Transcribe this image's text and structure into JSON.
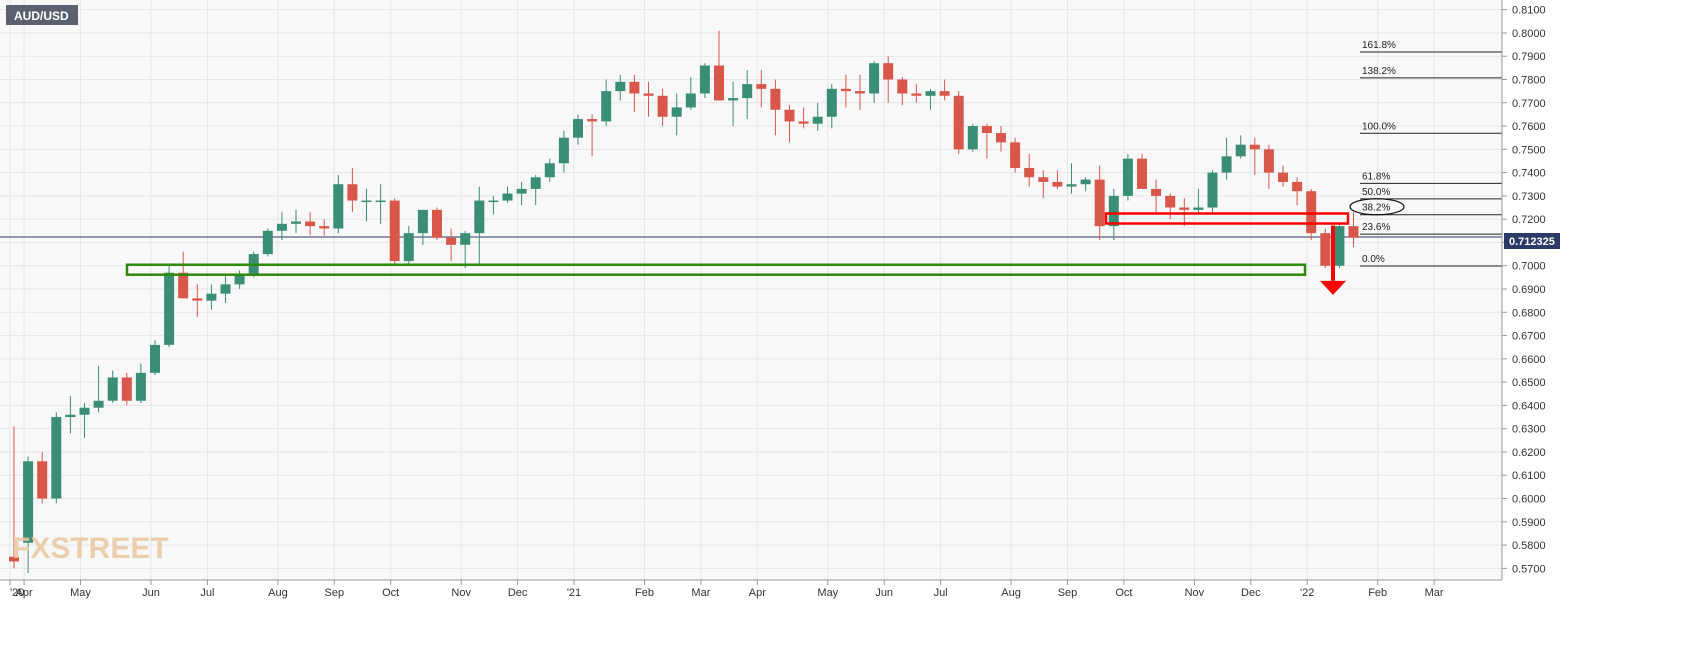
{
  "symbol_badge": "AUD/USD",
  "watermark": "FXSTREET",
  "price_badge": "0.712325",
  "colors": {
    "up": "#3a8e76",
    "down": "#d9574a",
    "grid": "#e6e6e6",
    "bg": "#f8f8f8",
    "support": "#2e8a0c",
    "resistance": "#ff0000",
    "arrow": "#ff0000"
  },
  "chart_data": {
    "type": "candlestick",
    "title": "AUD/USD",
    "timeframe": "weekly",
    "ylim": [
      0.565,
      0.812
    ],
    "y_ticks": [
      "0.8100",
      "0.8000",
      "0.7900",
      "0.7800",
      "0.7700",
      "0.7600",
      "0.7500",
      "0.7400",
      "0.7300",
      "0.7200",
      "0.7100",
      "0.7000",
      "0.6900",
      "0.6800",
      "0.6700",
      "0.6600",
      "0.6500",
      "0.6400",
      "0.6300",
      "0.6200",
      "0.6100",
      "0.6000",
      "0.5900",
      "0.5800",
      "0.5700"
    ],
    "x_labels": [
      {
        "label": "'20",
        "week": 0
      },
      {
        "label": "Apr",
        "week": 1
      },
      {
        "label": "May",
        "week": 5
      },
      {
        "label": "Jun",
        "week": 10
      },
      {
        "label": "Jul",
        "week": 14
      },
      {
        "label": "Aug",
        "week": 19
      },
      {
        "label": "Sep",
        "week": 23
      },
      {
        "label": "Oct",
        "week": 27
      },
      {
        "label": "Nov",
        "week": 32
      },
      {
        "label": "Dec",
        "week": 36
      },
      {
        "label": "'21",
        "week": 40
      },
      {
        "label": "Feb",
        "week": 45
      },
      {
        "label": "Mar",
        "week": 49
      },
      {
        "label": "Apr",
        "week": 53
      },
      {
        "label": "May",
        "week": 58
      },
      {
        "label": "Jun",
        "week": 62
      },
      {
        "label": "Jul",
        "week": 66
      },
      {
        "label": "Aug",
        "week": 71
      },
      {
        "label": "Sep",
        "week": 75
      },
      {
        "label": "Oct",
        "week": 79
      },
      {
        "label": "Nov",
        "week": 84
      },
      {
        "label": "Dec",
        "week": 88
      },
      {
        "label": "'22",
        "week": 92
      },
      {
        "label": "Feb",
        "week": 97
      },
      {
        "label": "Mar",
        "week": 101
      }
    ],
    "candles": [
      [
        0.575,
        0.631,
        0.57,
        0.573
      ],
      [
        0.581,
        0.618,
        0.568,
        0.616
      ],
      [
        0.616,
        0.62,
        0.598,
        0.6
      ],
      [
        0.6,
        0.637,
        0.598,
        0.635
      ],
      [
        0.635,
        0.644,
        0.628,
        0.636
      ],
      [
        0.636,
        0.641,
        0.626,
        0.639
      ],
      [
        0.639,
        0.657,
        0.637,
        0.642
      ],
      [
        0.642,
        0.655,
        0.641,
        0.652
      ],
      [
        0.652,
        0.654,
        0.64,
        0.642
      ],
      [
        0.642,
        0.658,
        0.641,
        0.654
      ],
      [
        0.654,
        0.668,
        0.653,
        0.666
      ],
      [
        0.666,
        0.701,
        0.665,
        0.697
      ],
      [
        0.697,
        0.706,
        0.686,
        0.686
      ],
      [
        0.686,
        0.692,
        0.678,
        0.685
      ],
      [
        0.685,
        0.692,
        0.681,
        0.688
      ],
      [
        0.688,
        0.696,
        0.684,
        0.692
      ],
      [
        0.692,
        0.698,
        0.69,
        0.696
      ],
      [
        0.696,
        0.706,
        0.695,
        0.705
      ],
      [
        0.705,
        0.716,
        0.704,
        0.715
      ],
      [
        0.715,
        0.723,
        0.711,
        0.718
      ],
      [
        0.718,
        0.724,
        0.714,
        0.719
      ],
      [
        0.719,
        0.723,
        0.713,
        0.717
      ],
      [
        0.717,
        0.72,
        0.713,
        0.716
      ],
      [
        0.716,
        0.739,
        0.714,
        0.735
      ],
      [
        0.735,
        0.742,
        0.723,
        0.728
      ],
      [
        0.728,
        0.733,
        0.719,
        0.728
      ],
      [
        0.728,
        0.735,
        0.718,
        0.728
      ],
      [
        0.728,
        0.729,
        0.7,
        0.702
      ],
      [
        0.702,
        0.717,
        0.7,
        0.714
      ],
      [
        0.714,
        0.724,
        0.709,
        0.724
      ],
      [
        0.724,
        0.725,
        0.711,
        0.712
      ],
      [
        0.712,
        0.716,
        0.702,
        0.709
      ],
      [
        0.709,
        0.715,
        0.699,
        0.714
      ],
      [
        0.714,
        0.734,
        0.7,
        0.728
      ],
      [
        0.728,
        0.73,
        0.722,
        0.728
      ],
      [
        0.728,
        0.734,
        0.727,
        0.731
      ],
      [
        0.731,
        0.736,
        0.726,
        0.733
      ],
      [
        0.733,
        0.739,
        0.726,
        0.738
      ],
      [
        0.738,
        0.746,
        0.736,
        0.744
      ],
      [
        0.744,
        0.758,
        0.74,
        0.755
      ],
      [
        0.755,
        0.765,
        0.752,
        0.763
      ],
      [
        0.763,
        0.765,
        0.747,
        0.762
      ],
      [
        0.762,
        0.78,
        0.76,
        0.775
      ],
      [
        0.775,
        0.782,
        0.771,
        0.779
      ],
      [
        0.779,
        0.782,
        0.766,
        0.774
      ],
      [
        0.774,
        0.779,
        0.764,
        0.773
      ],
      [
        0.773,
        0.776,
        0.76,
        0.764
      ],
      [
        0.764,
        0.774,
        0.756,
        0.768
      ],
      [
        0.768,
        0.781,
        0.767,
        0.774
      ],
      [
        0.774,
        0.787,
        0.772,
        0.786
      ],
      [
        0.786,
        0.801,
        0.773,
        0.771
      ],
      [
        0.771,
        0.779,
        0.76,
        0.772
      ],
      [
        0.772,
        0.784,
        0.763,
        0.778
      ],
      [
        0.778,
        0.784,
        0.768,
        0.776
      ],
      [
        0.776,
        0.78,
        0.756,
        0.767
      ],
      [
        0.767,
        0.769,
        0.753,
        0.762
      ],
      [
        0.762,
        0.768,
        0.759,
        0.761
      ],
      [
        0.761,
        0.77,
        0.758,
        0.764
      ],
      [
        0.764,
        0.778,
        0.759,
        0.776
      ],
      [
        0.776,
        0.782,
        0.768,
        0.775
      ],
      [
        0.775,
        0.782,
        0.767,
        0.774
      ],
      [
        0.774,
        0.788,
        0.77,
        0.787
      ],
      [
        0.787,
        0.79,
        0.77,
        0.78
      ],
      [
        0.78,
        0.781,
        0.769,
        0.774
      ],
      [
        0.774,
        0.778,
        0.77,
        0.773
      ],
      [
        0.773,
        0.776,
        0.767,
        0.775
      ],
      [
        0.775,
        0.78,
        0.771,
        0.773
      ],
      [
        0.773,
        0.775,
        0.748,
        0.75
      ],
      [
        0.75,
        0.761,
        0.749,
        0.76
      ],
      [
        0.76,
        0.761,
        0.746,
        0.757
      ],
      [
        0.757,
        0.76,
        0.749,
        0.753
      ],
      [
        0.753,
        0.755,
        0.74,
        0.742
      ],
      [
        0.742,
        0.748,
        0.734,
        0.738
      ],
      [
        0.738,
        0.741,
        0.729,
        0.736
      ],
      [
        0.736,
        0.741,
        0.733,
        0.734
      ],
      [
        0.734,
        0.744,
        0.731,
        0.735
      ],
      [
        0.735,
        0.738,
        0.732,
        0.737
      ],
      [
        0.737,
        0.743,
        0.711,
        0.717
      ],
      [
        0.717,
        0.733,
        0.711,
        0.73
      ],
      [
        0.73,
        0.748,
        0.728,
        0.746
      ],
      [
        0.746,
        0.748,
        0.733,
        0.733
      ],
      [
        0.733,
        0.737,
        0.723,
        0.73
      ],
      [
        0.73,
        0.731,
        0.72,
        0.725
      ],
      [
        0.725,
        0.729,
        0.717,
        0.724
      ],
      [
        0.724,
        0.733,
        0.722,
        0.725
      ],
      [
        0.725,
        0.741,
        0.722,
        0.74
      ],
      [
        0.74,
        0.755,
        0.737,
        0.747
      ],
      [
        0.747,
        0.756,
        0.746,
        0.752
      ],
      [
        0.752,
        0.755,
        0.739,
        0.75
      ],
      [
        0.75,
        0.752,
        0.733,
        0.74
      ],
      [
        0.74,
        0.743,
        0.734,
        0.736
      ],
      [
        0.736,
        0.738,
        0.726,
        0.732
      ],
      [
        0.732,
        0.733,
        0.711,
        0.714
      ],
      [
        0.714,
        0.716,
        0.699,
        0.7
      ],
      [
        0.7,
        0.718,
        0.699,
        0.717
      ],
      [
        0.717,
        0.723,
        0.708,
        0.712
      ]
    ],
    "fibonacci": [
      {
        "label": "161.8%",
        "value": 0.7918
      },
      {
        "label": "138.2%",
        "value": 0.7807
      },
      {
        "label": "100.0%",
        "value": 0.7569
      },
      {
        "label": "61.8%",
        "value": 0.7354
      },
      {
        "label": "50.0%",
        "value": 0.7287
      },
      {
        "label": "38.2%",
        "value": 0.7219
      },
      {
        "label": "23.6%",
        "value": 0.7136
      },
      {
        "label": "0.0%",
        "value": 0.6999
      }
    ],
    "current_price": 0.712325,
    "support_zone": [
      0.697,
      0.7
    ],
    "resistance_zone": [
      0.719,
      0.722
    ],
    "annotation": "downward arrow from resistance zone"
  }
}
